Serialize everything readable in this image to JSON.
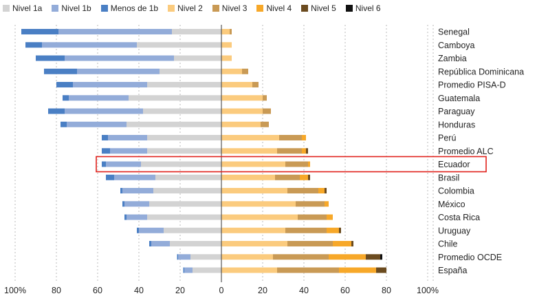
{
  "chart_data": {
    "type": "bar",
    "stacked": "diverging",
    "legend_position": "top",
    "grid": true,
    "xlim": [
      -100,
      100
    ],
    "x_ticks": [
      {
        "value": -100,
        "label": "100%"
      },
      {
        "value": -80,
        "label": "80"
      },
      {
        "value": -60,
        "label": "60"
      },
      {
        "value": -40,
        "label": "40"
      },
      {
        "value": -20,
        "label": "20"
      },
      {
        "value": 0,
        "label": "0"
      },
      {
        "value": 20,
        "label": "20"
      },
      {
        "value": 40,
        "label": "40"
      },
      {
        "value": 60,
        "label": "60"
      },
      {
        "value": 80,
        "label": "80"
      },
      {
        "value": 100,
        "label": "100%"
      }
    ],
    "highlight": "Ecuador",
    "categories": [
      "Senegal",
      "Camboya",
      "Zambia",
      "República Dominicana",
      "Promedio PISA-D",
      "Guatemala",
      "Paraguay",
      "Honduras",
      "Perú",
      "Promedio ALC",
      "Ecuador",
      "Brasil",
      "Colombia",
      "México",
      "Costa Rica",
      "Uruguay",
      "Chile",
      "Promedio OCDE",
      "España"
    ],
    "series": [
      {
        "name": "Nivel 1a",
        "side": "left",
        "color": "#d3d3d3",
        "values": [
          24,
          41,
          23,
          30,
          36,
          45,
          38,
          46,
          36,
          36,
          39,
          32,
          33,
          35,
          36,
          28,
          25,
          15,
          14
        ]
      },
      {
        "name": "Nivel 1b",
        "side": "left",
        "color": "#93acd9",
        "values": [
          55,
          46,
          53,
          40,
          36,
          29,
          38,
          29,
          19,
          18,
          17,
          20,
          15,
          12,
          10,
          12,
          9,
          6,
          4
        ]
      },
      {
        "name": "Menos de 1b",
        "side": "left",
        "color": "#4a7fc4",
        "values": [
          18,
          8,
          14,
          16,
          8,
          3,
          8,
          3,
          3,
          4,
          2,
          4,
          1,
          1,
          1,
          1,
          1,
          0.5,
          0.5
        ]
      },
      {
        "name": "Nivel 2",
        "side": "right",
        "color": "#fbcb7e",
        "values": [
          4,
          5,
          5,
          10,
          15,
          20,
          20,
          19,
          28,
          27,
          31,
          26,
          32,
          36,
          37,
          31,
          32,
          25,
          27
        ]
      },
      {
        "name": "Nivel 3",
        "side": "right",
        "color": "#c99a55",
        "values": [
          1,
          0,
          0,
          3,
          3,
          2,
          4,
          4,
          11,
          12,
          11,
          12,
          15,
          14,
          14,
          20,
          22,
          27,
          30
        ]
      },
      {
        "name": "Nivel 4",
        "side": "right",
        "color": "#f7a829",
        "values": [
          0,
          0,
          0,
          0,
          0,
          0,
          0,
          0,
          2,
          2,
          1,
          4,
          3,
          2,
          3,
          6,
          9,
          18,
          18
        ]
      },
      {
        "name": "Nivel 5",
        "side": "right",
        "color": "#6b4b1f",
        "values": [
          0,
          0,
          0,
          0,
          0,
          0,
          0,
          0,
          0,
          1,
          0,
          1,
          1,
          0,
          0,
          1,
          1,
          7,
          5
        ]
      },
      {
        "name": "Nivel 6",
        "side": "right",
        "color": "#111111",
        "values": [
          0,
          0,
          0,
          0,
          0,
          0,
          0,
          0,
          0,
          0,
          0,
          0,
          0,
          0,
          0,
          0,
          0,
          1,
          0
        ]
      }
    ]
  }
}
